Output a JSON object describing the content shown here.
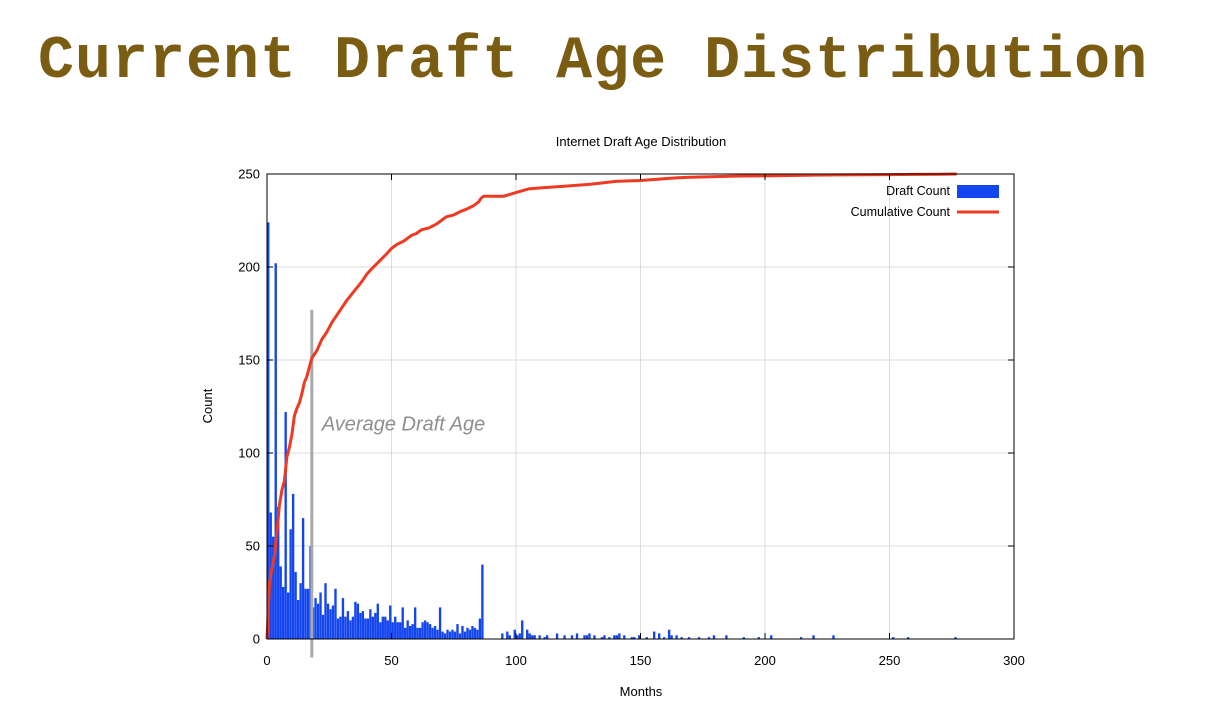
{
  "slide": {
    "title": "Current Draft Age Distribution"
  },
  "chart_data": {
    "type": "bar",
    "title": "Internet Draft Age Distribution",
    "xlabel": "Months",
    "ylabel": "Count",
    "xlim": [
      0,
      300
    ],
    "ylim": [
      0,
      250
    ],
    "x_ticks": [
      0,
      50,
      100,
      150,
      200,
      250,
      300
    ],
    "y_ticks": [
      0,
      50,
      100,
      150,
      200,
      250
    ],
    "grid": true,
    "legend_position": "top-right",
    "annotation": {
      "text": "Average Draft Age",
      "x": 18,
      "y_range": [
        -10,
        177
      ]
    },
    "colors": {
      "bars": "#1446f0",
      "cumulative": "#ee3a22",
      "average_line": "#aaaaaa"
    },
    "series": [
      {
        "name": "Draft Count",
        "type": "bar",
        "x": [
          1,
          2,
          3,
          4,
          5,
          6,
          7,
          8,
          9,
          10,
          11,
          12,
          13,
          14,
          15,
          16,
          17,
          18,
          19,
          20,
          21,
          22,
          23,
          24,
          25,
          26,
          27,
          28,
          29,
          30,
          31,
          32,
          33,
          34,
          35,
          36,
          37,
          38,
          39,
          40,
          41,
          42,
          43,
          44,
          45,
          46,
          47,
          48,
          49,
          50,
          51,
          52,
          53,
          54,
          55,
          56,
          57,
          58,
          59,
          60,
          61,
          62,
          63,
          64,
          65,
          66,
          67,
          68,
          69,
          70,
          71,
          72,
          73,
          74,
          75,
          76,
          77,
          78,
          79,
          80,
          81,
          82,
          83,
          84,
          85,
          86,
          87,
          95,
          97,
          98,
          100,
          101,
          102,
          103,
          105,
          106,
          107,
          108,
          110,
          112,
          113,
          117,
          120,
          123,
          125,
          128,
          129,
          130,
          132,
          135,
          136,
          138,
          140,
          141,
          142,
          144,
          147,
          148,
          150,
          153,
          156,
          158,
          160,
          162,
          163,
          165,
          167,
          170,
          174,
          178,
          180,
          185,
          192,
          198,
          203,
          215,
          220,
          228,
          252,
          258,
          277
        ],
        "values": [
          224,
          68,
          55,
          202,
          71,
          39,
          28,
          122,
          25,
          59,
          78,
          36,
          21,
          30,
          65,
          27,
          27,
          50,
          17,
          22,
          19,
          25,
          13,
          30,
          19,
          16,
          18,
          27,
          11,
          12,
          22,
          12,
          15,
          10,
          12,
          20,
          19,
          14,
          15,
          11,
          11,
          16,
          12,
          14,
          19,
          9,
          12,
          12,
          10,
          18,
          9,
          12,
          9,
          9,
          17,
          6,
          10,
          7,
          8,
          17,
          6,
          6,
          9,
          10,
          9,
          8,
          6,
          7,
          5,
          17,
          4,
          3,
          5,
          4,
          5,
          4,
          8,
          3,
          7,
          4,
          6,
          5,
          7,
          6,
          5,
          11,
          40,
          3,
          4,
          2,
          5,
          2,
          3,
          10,
          5,
          3,
          2,
          2,
          2,
          1,
          2,
          3,
          2,
          2,
          3,
          2,
          2,
          3,
          2,
          1,
          2,
          1,
          2,
          2,
          3,
          2,
          1,
          1,
          2,
          1,
          4,
          3,
          1,
          5,
          2,
          2,
          1,
          1,
          1,
          1,
          2,
          2,
          1,
          1,
          2,
          1,
          2,
          2,
          1,
          1,
          1
        ]
      },
      {
        "name": "Cumulative Count",
        "type": "line",
        "x": [
          0,
          1,
          2,
          3,
          4,
          5,
          6,
          7,
          8,
          9,
          10,
          11,
          12,
          13,
          14,
          15,
          16,
          17,
          18,
          20,
          22,
          24,
          26,
          28,
          30,
          32,
          35,
          38,
          40,
          42,
          45,
          48,
          50,
          52,
          55,
          58,
          60,
          62,
          65,
          68,
          70,
          72,
          75,
          78,
          80,
          83,
          85,
          86,
          87,
          90,
          95,
          100,
          105,
          110,
          115,
          120,
          130,
          140,
          150,
          160,
          165,
          170,
          180,
          190,
          200,
          210,
          220,
          230,
          240,
          250,
          260,
          270,
          277
        ],
        "values": [
          0,
          30,
          38,
          45,
          58,
          72,
          80,
          85,
          98,
          103,
          110,
          120,
          124,
          127,
          132,
          138,
          141,
          146,
          151,
          155,
          161,
          165,
          170,
          174,
          178,
          182,
          187,
          192,
          196,
          199,
          203,
          207,
          210,
          212,
          214,
          217,
          218,
          220,
          221,
          223,
          225,
          227,
          228,
          230,
          231,
          233,
          235,
          237,
          238,
          238,
          238,
          240,
          242,
          242.5,
          243,
          243.5,
          244.5,
          246,
          246.5,
          247.5,
          248,
          248.3,
          248.6,
          248.9,
          249,
          249.2,
          249.4,
          249.5,
          249.6,
          249.7,
          249.8,
          249.9,
          250
        ]
      }
    ]
  }
}
